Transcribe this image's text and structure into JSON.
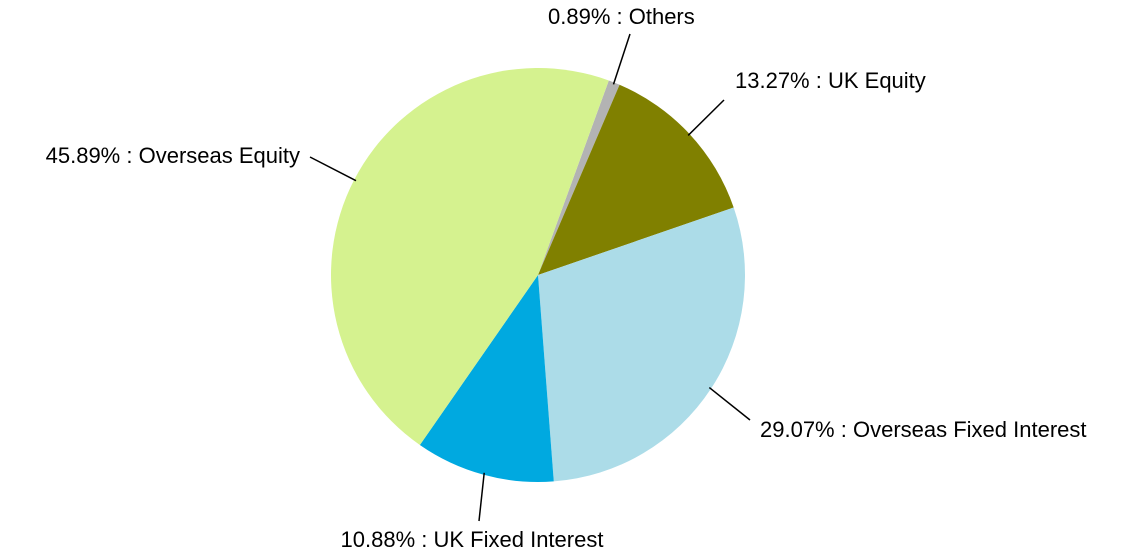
{
  "chart_data": {
    "type": "pie",
    "categories": [
      "Others",
      "UK Equity",
      "Overseas Fixed Interest",
      "UK Fixed Interest",
      "Overseas Equity"
    ],
    "values": [
      0.89,
      13.27,
      29.07,
      10.88,
      45.89
    ],
    "value_labels": [
      "0.89%",
      "13.27%",
      "29.07%",
      "10.88%",
      "45.89%"
    ],
    "label_separator": " : ",
    "colors": [
      "#b3b3b3",
      "#808000",
      "#acdce8",
      "#00a9e0",
      "#d5f28f"
    ]
  }
}
